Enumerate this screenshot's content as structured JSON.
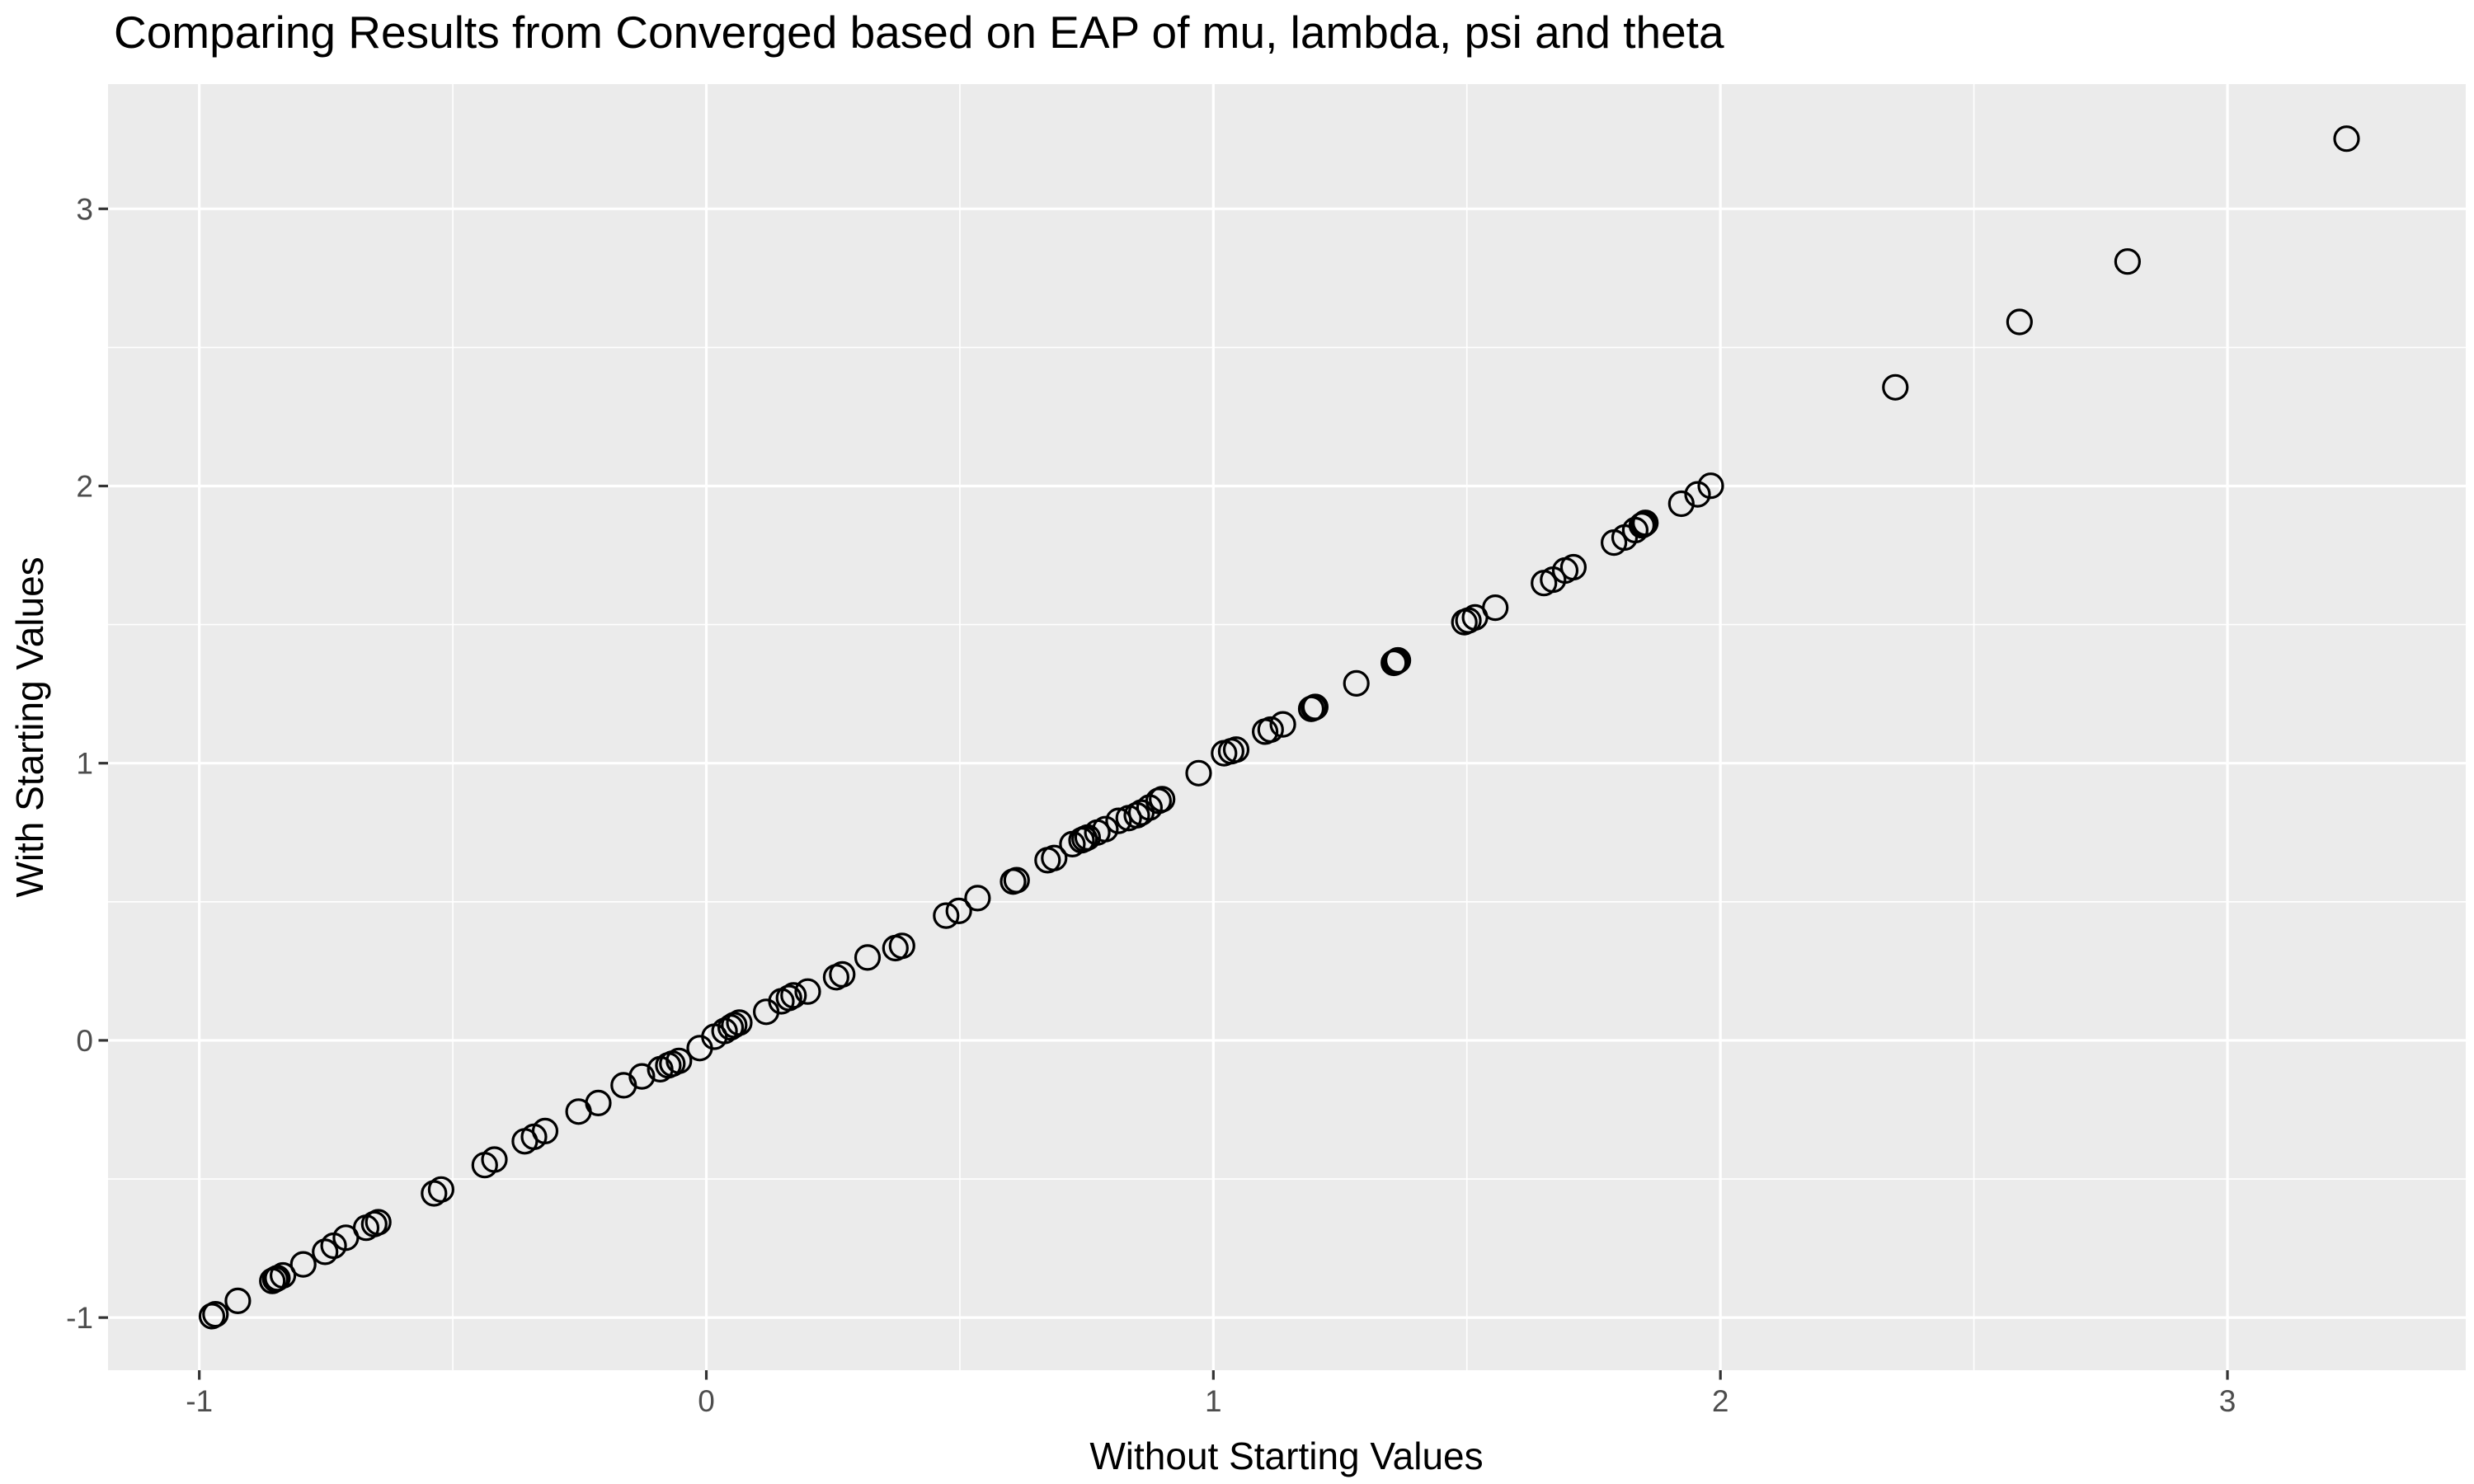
{
  "chart_data": {
    "type": "scatter",
    "title": "Comparing Results from Converged based on EAP of mu, lambda, psi and theta",
    "xlabel": "Without Starting Values",
    "ylabel": "With Starting Values",
    "xlim": [
      -1.18,
      3.47
    ],
    "ylim": [
      -1.19,
      3.45
    ],
    "x_major_ticks": [
      -1,
      0,
      1,
      2,
      3
    ],
    "y_major_ticks": [
      -1,
      0,
      1,
      2,
      3
    ],
    "x_minor_ticks": [
      -0.5,
      0.5,
      1.5,
      2.5
    ],
    "y_minor_ticks": [
      -0.5,
      0.5,
      1.5,
      2.5
    ],
    "grid": true,
    "legend_position": "none",
    "marker": "open-circle",
    "colors": {
      "panel_background": "#EBEBEB",
      "gridline": "#FFFFFF",
      "point_stroke": "#000000",
      "tick_mark": "#333333",
      "tick_label": "#4D4D4D",
      "axis_title": "#000000",
      "title": "#000000",
      "figure_background": "#FFFFFF"
    },
    "points": [
      [
        -0.975,
        -0.995
      ],
      [
        -0.968,
        -0.988
      ],
      [
        -0.924,
        -0.94
      ],
      [
        -0.856,
        -0.868
      ],
      [
        -0.85,
        -0.862
      ],
      [
        -0.846,
        -0.858
      ],
      [
        -0.835,
        -0.848
      ],
      [
        -0.795,
        -0.808
      ],
      [
        -0.752,
        -0.763
      ],
      [
        -0.735,
        -0.741
      ],
      [
        -0.711,
        -0.712
      ],
      [
        -0.671,
        -0.676
      ],
      [
        -0.655,
        -0.663
      ],
      [
        -0.647,
        -0.656
      ],
      [
        -0.537,
        -0.552
      ],
      [
        -0.523,
        -0.538
      ],
      [
        -0.437,
        -0.45
      ],
      [
        -0.418,
        -0.43
      ],
      [
        -0.358,
        -0.364
      ],
      [
        -0.34,
        -0.348
      ],
      [
        -0.318,
        -0.327
      ],
      [
        -0.252,
        -0.257
      ],
      [
        -0.213,
        -0.226
      ],
      [
        -0.163,
        -0.162
      ],
      [
        -0.127,
        -0.13
      ],
      [
        -0.091,
        -0.104
      ],
      [
        -0.075,
        -0.09
      ],
      [
        -0.067,
        -0.084
      ],
      [
        -0.054,
        -0.074
      ],
      [
        -0.013,
        -0.028
      ],
      [
        0.016,
        0.013
      ],
      [
        0.036,
        0.034
      ],
      [
        0.048,
        0.047
      ],
      [
        0.055,
        0.055
      ],
      [
        0.065,
        0.064
      ],
      [
        0.118,
        0.103
      ],
      [
        0.148,
        0.141
      ],
      [
        0.163,
        0.153
      ],
      [
        0.172,
        0.162
      ],
      [
        0.2,
        0.176
      ],
      [
        0.256,
        0.228
      ],
      [
        0.268,
        0.238
      ],
      [
        0.318,
        0.299
      ],
      [
        0.373,
        0.333
      ],
      [
        0.386,
        0.341
      ],
      [
        0.473,
        0.45
      ],
      [
        0.498,
        0.467
      ],
      [
        0.535,
        0.513
      ],
      [
        0.605,
        0.573
      ],
      [
        0.612,
        0.578
      ],
      [
        0.673,
        0.65
      ],
      [
        0.686,
        0.658
      ],
      [
        0.722,
        0.708
      ],
      [
        0.74,
        0.722
      ],
      [
        0.746,
        0.727
      ],
      [
        0.752,
        0.732
      ],
      [
        0.771,
        0.75
      ],
      [
        0.787,
        0.762
      ],
      [
        0.813,
        0.792
      ],
      [
        0.833,
        0.802
      ],
      [
        0.849,
        0.812
      ],
      [
        0.858,
        0.822
      ],
      [
        0.874,
        0.84
      ],
      [
        0.892,
        0.864
      ],
      [
        0.899,
        0.87
      ],
      [
        0.971,
        0.964
      ],
      [
        1.021,
        1.036
      ],
      [
        1.035,
        1.043
      ],
      [
        1.045,
        1.049
      ],
      [
        1.102,
        1.114
      ],
      [
        1.113,
        1.121
      ],
      [
        1.137,
        1.14
      ],
      [
        1.193,
        1.196
      ],
      [
        1.198,
        1.2
      ],
      [
        1.201,
        1.203
      ],
      [
        1.282,
        1.288
      ],
      [
        1.356,
        1.362
      ],
      [
        1.36,
        1.366
      ],
      [
        1.364,
        1.371
      ],
      [
        1.495,
        1.509
      ],
      [
        1.503,
        1.515
      ],
      [
        1.516,
        1.526
      ],
      [
        1.556,
        1.561
      ],
      [
        1.652,
        1.65
      ],
      [
        1.67,
        1.662
      ],
      [
        1.694,
        1.695
      ],
      [
        1.71,
        1.707
      ],
      [
        1.79,
        1.796
      ],
      [
        1.811,
        1.814
      ],
      [
        1.832,
        1.841
      ],
      [
        1.845,
        1.858
      ],
      [
        1.849,
        1.862
      ],
      [
        1.852,
        1.867
      ],
      [
        1.923,
        1.936
      ],
      [
        1.955,
        1.97
      ],
      [
        1.981,
        2.001
      ],
      [
        2.345,
        2.356
      ],
      [
        2.59,
        2.592
      ],
      [
        2.803,
        2.81
      ],
      [
        3.235,
        3.253
      ]
    ]
  }
}
